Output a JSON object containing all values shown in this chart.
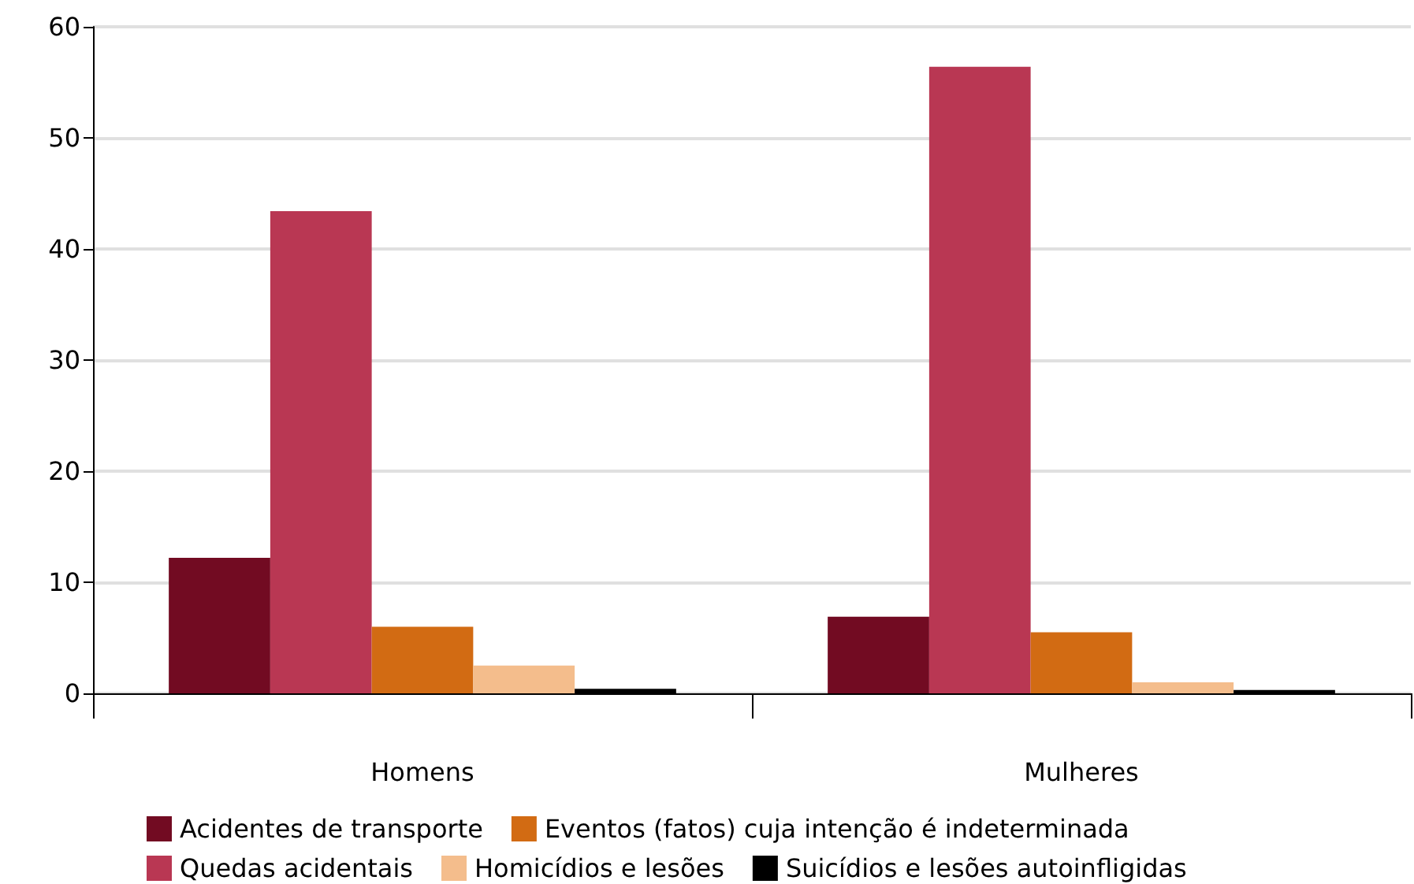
{
  "chart_data": {
    "type": "bar",
    "categories": [
      "Homens",
      "Mulheres"
    ],
    "series": [
      {
        "name": "Acidentes de transporte",
        "color": "#720b22",
        "values": [
          12.2,
          6.9
        ]
      },
      {
        "name": "Quedas acidentais",
        "color": "#b93753",
        "values": [
          43.4,
          56.4
        ]
      },
      {
        "name": "Eventos (fatos) cuja intenção é indeterminada",
        "color": "#d26b13",
        "values": [
          6.0,
          5.5
        ]
      },
      {
        "name": "Homicídios e lesões",
        "color": "#f4bd8c",
        "values": [
          2.5,
          1.0
        ]
      },
      {
        "name": "Suicídios e lesões autoinfligidas",
        "color": "#000000",
        "values": [
          0.4,
          0.3
        ]
      }
    ],
    "ylim": [
      0,
      60
    ],
    "yticks": [
      0,
      10,
      20,
      30,
      40,
      50,
      60
    ],
    "grid": "y",
    "legend": "bottom"
  }
}
